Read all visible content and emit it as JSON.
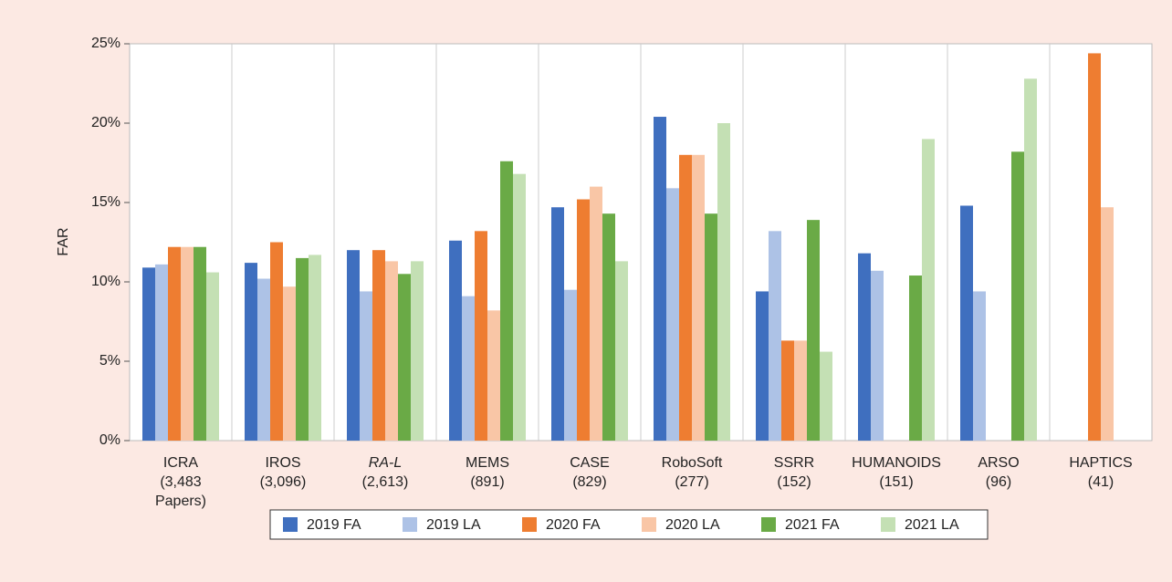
{
  "chart_data": {
    "type": "bar",
    "y_label": "FAR",
    "categories": [
      [
        "ICRA",
        "(3,483",
        "Papers)"
      ],
      [
        "IROS",
        "(3,096)"
      ],
      [
        "RA-L",
        "(2,613)"
      ],
      [
        "MEMS",
        "(891)"
      ],
      [
        "CASE",
        "(829)"
      ],
      [
        "RoboSoft",
        "(277)"
      ],
      [
        "SSRR",
        "(152)"
      ],
      [
        "HUMANOIDS",
        "(151)"
      ],
      [
        "ARSO",
        "(96)"
      ],
      [
        "HAPTICS",
        "(41)"
      ]
    ],
    "series": [
      {
        "name": "2019 FA",
        "color": "#3f6fbf",
        "values": [
          10.9,
          11.2,
          12.0,
          12.6,
          14.7,
          20.4,
          9.4,
          11.8,
          14.8,
          null
        ]
      },
      {
        "name": "2019 LA",
        "color": "#adc2e6",
        "values": [
          11.1,
          10.2,
          9.4,
          9.1,
          9.5,
          15.9,
          13.2,
          10.7,
          9.4,
          null
        ]
      },
      {
        "name": "2020 FA",
        "color": "#ee7d31",
        "values": [
          12.2,
          12.5,
          12.0,
          13.2,
          15.2,
          18.0,
          6.3,
          null,
          null,
          24.4
        ]
      },
      {
        "name": "2020 LA",
        "color": "#f9c6a6",
        "values": [
          12.2,
          9.7,
          11.3,
          8.2,
          16.0,
          18.0,
          6.3,
          null,
          null,
          14.7
        ]
      },
      {
        "name": "2021 FA",
        "color": "#6aaa46",
        "values": [
          12.2,
          11.5,
          10.5,
          17.6,
          14.3,
          14.3,
          13.9,
          10.4,
          18.2,
          null
        ]
      },
      {
        "name": "2021 LA",
        "color": "#c4e0b4",
        "values": [
          10.6,
          11.7,
          11.3,
          16.8,
          11.3,
          20.0,
          5.6,
          19.0,
          22.8,
          null
        ]
      }
    ],
    "ylim": [
      0,
      25
    ],
    "yticks": [
      {
        "value": 0,
        "label": "0%"
      },
      {
        "value": 5,
        "label": "5%"
      },
      {
        "value": 10,
        "label": "10%"
      },
      {
        "value": 15,
        "label": "15%"
      },
      {
        "value": 20,
        "label": "20%"
      },
      {
        "value": 25,
        "label": "25%"
      }
    ]
  }
}
